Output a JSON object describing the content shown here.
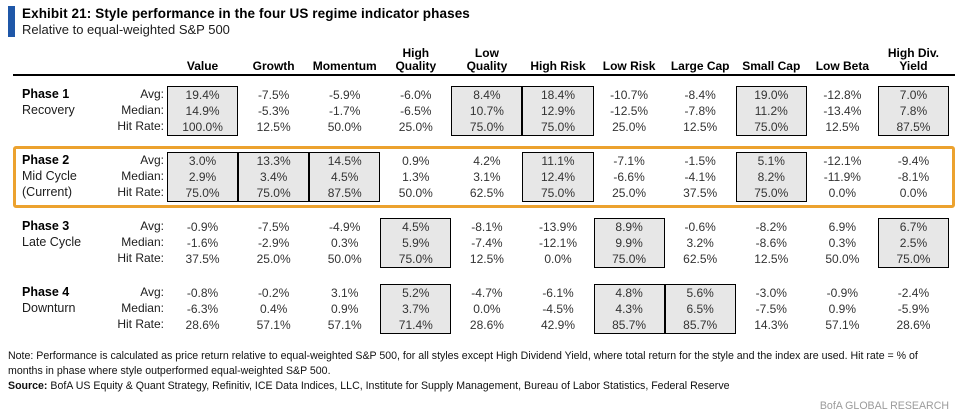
{
  "header": {
    "title": "Exhibit 21: Style performance in the four US regime indicator phases",
    "subtitle": "Relative to equal-weighted S&P 500"
  },
  "table": {
    "stat_labels": [
      "Avg:",
      "Median:",
      "Hit Rate:"
    ],
    "columns": [
      {
        "key": "value",
        "label": "Value"
      },
      {
        "key": "growth",
        "label": "Growth"
      },
      {
        "key": "momentum",
        "label": "Momentum"
      },
      {
        "key": "high-quality",
        "label": "High\nQuality"
      },
      {
        "key": "low-quality",
        "label": "Low\nQuality"
      },
      {
        "key": "high-risk",
        "label": "High Risk"
      },
      {
        "key": "low-risk",
        "label": "Low Risk"
      },
      {
        "key": "large-cap",
        "label": "Large Cap"
      },
      {
        "key": "small-cap",
        "label": "Small Cap"
      },
      {
        "key": "low-beta",
        "label": "Low Beta"
      },
      {
        "key": "high-div-yield",
        "label": "High Div.\nYield"
      }
    ],
    "phases": [
      {
        "key": "phase-1",
        "name": "Phase 1",
        "subtitle_lines": [
          "Recovery"
        ],
        "current": false,
        "highlighted_cols": [
          0,
          4,
          5,
          8,
          10
        ],
        "rows": {
          "avg": [
            "19.4%",
            "-7.5%",
            "-5.9%",
            "-6.0%",
            "8.4%",
            "18.4%",
            "-10.7%",
            "-8.4%",
            "19.0%",
            "-12.8%",
            "7.0%"
          ],
          "median": [
            "14.9%",
            "-5.3%",
            "-1.7%",
            "-6.5%",
            "10.7%",
            "12.9%",
            "-12.5%",
            "-7.8%",
            "11.2%",
            "-13.4%",
            "7.8%"
          ],
          "hit": [
            "100.0%",
            "12.5%",
            "50.0%",
            "25.0%",
            "75.0%",
            "75.0%",
            "25.0%",
            "12.5%",
            "75.0%",
            "12.5%",
            "87.5%"
          ]
        }
      },
      {
        "key": "phase-2",
        "name": "Phase 2",
        "subtitle_lines": [
          "Mid Cycle",
          "(Current)"
        ],
        "current": true,
        "highlighted_cols": [
          0,
          1,
          2,
          5,
          8
        ],
        "rows": {
          "avg": [
            "3.0%",
            "13.3%",
            "14.5%",
            "0.9%",
            "4.2%",
            "11.1%",
            "-7.1%",
            "-1.5%",
            "5.1%",
            "-12.1%",
            "-9.4%"
          ],
          "median": [
            "2.9%",
            "3.4%",
            "4.5%",
            "1.3%",
            "3.1%",
            "12.4%",
            "-6.6%",
            "-4.1%",
            "8.2%",
            "-11.9%",
            "-8.1%"
          ],
          "hit": [
            "75.0%",
            "75.0%",
            "87.5%",
            "50.0%",
            "62.5%",
            "75.0%",
            "25.0%",
            "37.5%",
            "75.0%",
            "0.0%",
            "0.0%"
          ]
        }
      },
      {
        "key": "phase-3",
        "name": "Phase 3",
        "subtitle_lines": [
          "Late Cycle"
        ],
        "current": false,
        "highlighted_cols": [
          3,
          6,
          10
        ],
        "rows": {
          "avg": [
            "-0.9%",
            "-7.5%",
            "-4.9%",
            "4.5%",
            "-8.1%",
            "-13.9%",
            "8.9%",
            "-0.6%",
            "-8.2%",
            "6.9%",
            "6.7%"
          ],
          "median": [
            "-1.6%",
            "-2.9%",
            "0.3%",
            "5.9%",
            "-7.4%",
            "-12.1%",
            "9.9%",
            "3.2%",
            "-8.6%",
            "0.3%",
            "2.5%"
          ],
          "hit": [
            "37.5%",
            "25.0%",
            "50.0%",
            "75.0%",
            "12.5%",
            "0.0%",
            "75.0%",
            "62.5%",
            "12.5%",
            "50.0%",
            "75.0%"
          ]
        }
      },
      {
        "key": "phase-4",
        "name": "Phase 4",
        "subtitle_lines": [
          "Downturn"
        ],
        "current": false,
        "highlighted_cols": [
          3,
          6,
          7
        ],
        "rows": {
          "avg": [
            "-0.8%",
            "-0.2%",
            "3.1%",
            "5.2%",
            "-4.7%",
            "-6.1%",
            "4.8%",
            "5.6%",
            "-3.0%",
            "-0.9%",
            "-2.4%"
          ],
          "median": [
            "-6.3%",
            "0.4%",
            "0.9%",
            "3.7%",
            "0.0%",
            "-4.5%",
            "4.3%",
            "6.5%",
            "-7.5%",
            "0.9%",
            "-5.9%"
          ],
          "hit": [
            "28.6%",
            "57.1%",
            "57.1%",
            "71.4%",
            "28.6%",
            "42.9%",
            "85.7%",
            "85.7%",
            "14.3%",
            "57.1%",
            "28.6%"
          ]
        }
      }
    ]
  },
  "footer": {
    "note": "Note: Performance is calculated as price return relative to equal-weighted S&P 500, for all styles except High Dividend Yield, where total return for the style and the index are used. Hit rate = % of months in phase where style outperformed equal-weighted S&P 500.",
    "source_label": "Source:",
    "source_text": " BofA US Equity & Quant Strategy, Refinitiv, ICE Data Indices, LLC, Institute for Supply Management, Bureau of Labor Statistics, Federal Reserve",
    "brand": "BofA GLOBAL RESEARCH"
  },
  "colors": {
    "accent_blue": "#1f57a8",
    "current_phase_highlight_orange": "#eca22f",
    "cell_highlight_gray": "#e7e7e7",
    "cell_highlight_border": "#000000",
    "brand_gray": "#9b9b9b"
  }
}
